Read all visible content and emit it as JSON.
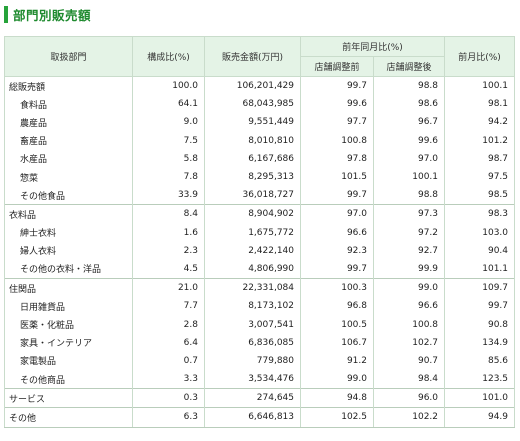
{
  "title": "部門別販売額",
  "headers": {
    "category": "取扱部門",
    "share": "構成比(%)",
    "sales": "販売金額(万円)",
    "yoy": "前年同月比(%)",
    "yoy_before": "店舗調整前",
    "yoy_after": "店舗調整後",
    "mom": "前月比(%)"
  },
  "rows": [
    {
      "label": "総販売額",
      "share": "100.0",
      "sales": "106,201,429",
      "yoy_before": "99.7",
      "yoy_after": "98.8",
      "mom": "100.1",
      "indent": false,
      "group_start": true
    },
    {
      "label": "食料品",
      "share": "64.1",
      "sales": "68,043,985",
      "yoy_before": "99.6",
      "yoy_after": "98.6",
      "mom": "98.1",
      "indent": true,
      "group_start": false
    },
    {
      "label": "農産品",
      "share": "9.0",
      "sales": "9,551,449",
      "yoy_before": "97.7",
      "yoy_after": "96.7",
      "mom": "94.2",
      "indent": true,
      "group_start": false
    },
    {
      "label": "畜産品",
      "share": "7.5",
      "sales": "8,010,810",
      "yoy_before": "100.8",
      "yoy_after": "99.6",
      "mom": "101.2",
      "indent": true,
      "group_start": false
    },
    {
      "label": "水産品",
      "share": "5.8",
      "sales": "6,167,686",
      "yoy_before": "97.8",
      "yoy_after": "97.0",
      "mom": "98.7",
      "indent": true,
      "group_start": false
    },
    {
      "label": "惣菜",
      "share": "7.8",
      "sales": "8,295,313",
      "yoy_before": "101.5",
      "yoy_after": "100.1",
      "mom": "97.5",
      "indent": true,
      "group_start": false
    },
    {
      "label": "その他食品",
      "share": "33.9",
      "sales": "36,018,727",
      "yoy_before": "99.7",
      "yoy_after": "98.8",
      "mom": "98.5",
      "indent": true,
      "group_start": false
    },
    {
      "label": "衣料品",
      "share": "8.4",
      "sales": "8,904,902",
      "yoy_before": "97.0",
      "yoy_after": "97.3",
      "mom": "98.3",
      "indent": false,
      "group_start": true
    },
    {
      "label": "紳士衣料",
      "share": "1.6",
      "sales": "1,675,772",
      "yoy_before": "96.6",
      "yoy_after": "97.2",
      "mom": "103.0",
      "indent": true,
      "group_start": false
    },
    {
      "label": "婦人衣料",
      "share": "2.3",
      "sales": "2,422,140",
      "yoy_before": "92.3",
      "yoy_after": "92.7",
      "mom": "90.4",
      "indent": true,
      "group_start": false
    },
    {
      "label": "その他の衣料・洋品",
      "share": "4.5",
      "sales": "4,806,990",
      "yoy_before": "99.7",
      "yoy_after": "99.9",
      "mom": "101.1",
      "indent": true,
      "group_start": false
    },
    {
      "label": "住関品",
      "share": "21.0",
      "sales": "22,331,084",
      "yoy_before": "100.3",
      "yoy_after": "99.0",
      "mom": "109.7",
      "indent": false,
      "group_start": true
    },
    {
      "label": "日用雑貨品",
      "share": "7.7",
      "sales": "8,173,102",
      "yoy_before": "96.8",
      "yoy_after": "96.6",
      "mom": "99.7",
      "indent": true,
      "group_start": false
    },
    {
      "label": "医薬・化粧品",
      "share": "2.8",
      "sales": "3,007,541",
      "yoy_before": "100.5",
      "yoy_after": "100.8",
      "mom": "90.8",
      "indent": true,
      "group_start": false
    },
    {
      "label": "家具・インテリア",
      "share": "6.4",
      "sales": "6,836,085",
      "yoy_before": "106.7",
      "yoy_after": "102.7",
      "mom": "134.9",
      "indent": true,
      "group_start": false
    },
    {
      "label": "家電製品",
      "share": "0.7",
      "sales": "779,880",
      "yoy_before": "91.2",
      "yoy_after": "90.7",
      "mom": "85.6",
      "indent": true,
      "group_start": false
    },
    {
      "label": "その他商品",
      "share": "3.3",
      "sales": "3,534,476",
      "yoy_before": "99.0",
      "yoy_after": "98.4",
      "mom": "123.5",
      "indent": true,
      "group_start": false
    },
    {
      "label": "サービス",
      "share": "0.3",
      "sales": "274,645",
      "yoy_before": "94.8",
      "yoy_after": "96.0",
      "mom": "101.0",
      "indent": false,
      "group_start": true
    },
    {
      "label": "その他",
      "share": "6.3",
      "sales": "6,646,813",
      "yoy_before": "102.5",
      "yoy_after": "102.2",
      "mom": "94.9",
      "indent": false,
      "group_start": true
    }
  ]
}
